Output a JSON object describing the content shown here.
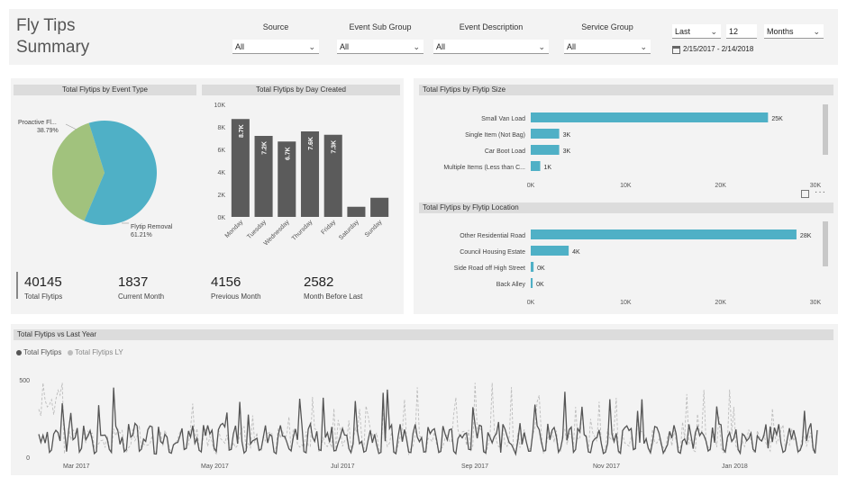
{
  "header": {
    "title_line1": "Fly Tips",
    "title_line2": "Summary",
    "slicers": [
      {
        "label": "Source",
        "value": "All"
      },
      {
        "label": "Event Sub Group",
        "value": "All"
      },
      {
        "label": "Event Description",
        "value": "All"
      },
      {
        "label": "Service Group",
        "value": "All"
      }
    ],
    "relative_period": "Last",
    "period_count": "12",
    "period_unit": "Months",
    "date_range": "2/15/2017 - 2/14/2018"
  },
  "kpis": [
    {
      "value": "40145",
      "label": "Total Flytips"
    },
    {
      "value": "1837",
      "label": "Current Month"
    },
    {
      "value": "4156",
      "label": "Previous Month"
    },
    {
      "value": "2582",
      "label": "Month Before Last"
    }
  ],
  "chart_data": [
    {
      "type": "pie",
      "title": "Total Flytips by Event Type",
      "slices": [
        {
          "name": "Proactive Fl...",
          "value": 38.79,
          "label": "38.79%",
          "color": "#a1c27d"
        },
        {
          "name": "Flytip Removal",
          "value": 61.21,
          "label": "61.21%",
          "color": "#4fb0c6"
        }
      ]
    },
    {
      "type": "bar",
      "title": "Total Flytips by Day Created",
      "categories": [
        "Monday",
        "Tuesday",
        "Wednesday",
        "Thursday",
        "Friday",
        "Saturday",
        "Sunday"
      ],
      "values": [
        8700,
        7200,
        6700,
        7600,
        7300,
        900,
        1700
      ],
      "data_labels": [
        "8.7K",
        "7.2K",
        "6.7K",
        "7.6K",
        "7.3K",
        "",
        ""
      ],
      "yticks": [
        "0K",
        "2K",
        "4K",
        "6K",
        "8K",
        "10K"
      ],
      "ylim": [
        0,
        10000
      ],
      "color": "#5b5b5b"
    },
    {
      "type": "bar",
      "orientation": "horizontal",
      "title": "Total Flytips by Flytip Size",
      "categories": [
        "Small Van Load",
        "Single Item (Not Bag)",
        "Car Boot Load",
        "Multiple Items (Less than C..."
      ],
      "values": [
        25000,
        3000,
        3000,
        1000
      ],
      "data_labels": [
        "25K",
        "3K",
        "3K",
        "1K"
      ],
      "xticks": [
        "0K",
        "10K",
        "20K",
        "30K"
      ],
      "xlim": [
        0,
        30000
      ],
      "color": "#4fb0c6"
    },
    {
      "type": "bar",
      "orientation": "horizontal",
      "title": "Total Flytips by Flytip Location",
      "categories": [
        "Other Residential Road",
        "Council Housing Estate",
        "Side Road off High Street",
        "Back Alley"
      ],
      "values": [
        28000,
        4000,
        300,
        200
      ],
      "data_labels": [
        "28K",
        "4K",
        "0K",
        "0K"
      ],
      "xticks": [
        "0K",
        "10K",
        "20K",
        "30K"
      ],
      "xlim": [
        0,
        30000
      ],
      "color": "#4fb0c6"
    },
    {
      "type": "line",
      "title": "Total Flytips vs Last Year",
      "series": [
        {
          "name": "Total Flytips",
          "color": "#555555"
        },
        {
          "name": "Total Flytips LY",
          "color": "#bdbdbd"
        }
      ],
      "yticks": [
        "0",
        "500"
      ],
      "ylim": [
        0,
        500
      ],
      "xticks": [
        "Mar 2017",
        "May 2017",
        "Jul 2017",
        "Sep 2017",
        "Nov 2017",
        "Jan 2018"
      ]
    }
  ]
}
